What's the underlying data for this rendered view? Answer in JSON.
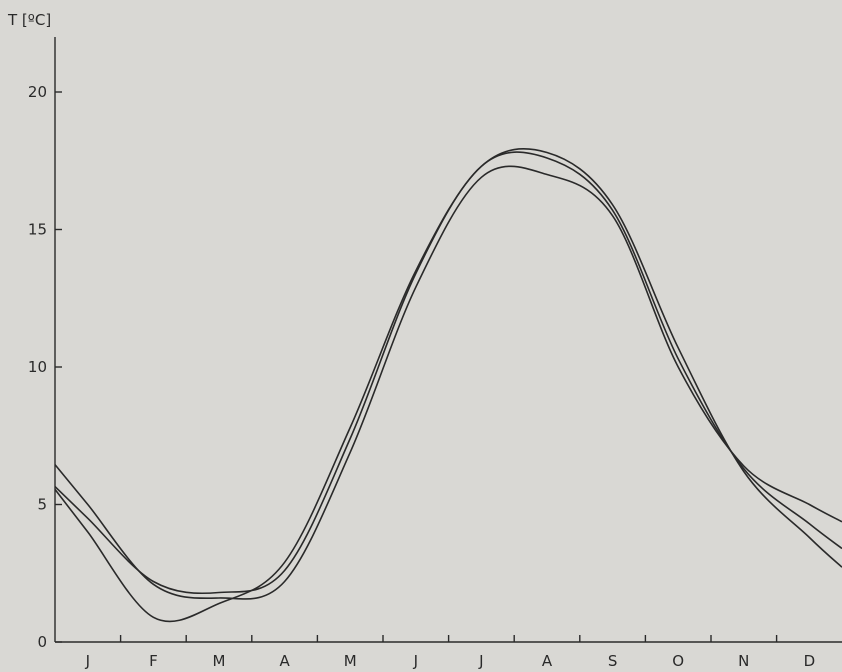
{
  "chart_data": {
    "type": "line",
    "title": "",
    "ylabel": "T [ºC]",
    "xlabel": "",
    "categories": [
      "J",
      "F",
      "M",
      "A",
      "M",
      "J",
      "J",
      "A",
      "S",
      "O",
      "N",
      "D"
    ],
    "ylim": [
      0,
      22
    ],
    "yticks": [
      "0",
      "5",
      "10",
      "15",
      "20"
    ],
    "grid": false,
    "series": [
      {
        "values": [
          5.0,
          2.1,
          1.6,
          2.2,
          6.9,
          12.9,
          16.9,
          17.0,
          15.5,
          10.0,
          6.4,
          5.0
        ]
      },
      {
        "values": [
          4.5,
          2.2,
          1.8,
          2.6,
          7.4,
          13.4,
          17.3,
          17.6,
          15.7,
          10.3,
          6.3,
          4.3
        ]
      },
      {
        "values": [
          4.0,
          0.9,
          1.4,
          2.9,
          7.8,
          13.5,
          17.3,
          17.8,
          15.9,
          10.7,
          6.2,
          3.8
        ]
      }
    ]
  }
}
